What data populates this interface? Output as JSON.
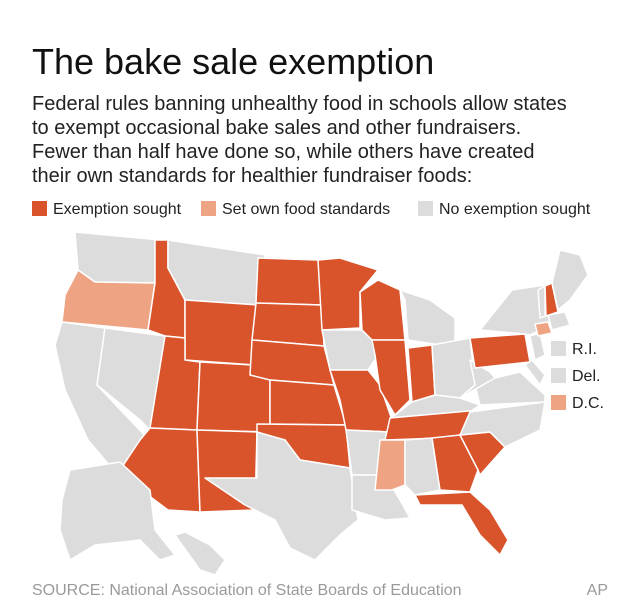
{
  "header": {
    "title": "The bake sale exemption",
    "description": [
      "Federal rules banning unhealthy food in schools allow states",
      "to exempt occasional bake sales and other fundraisers.",
      "Fewer than half have done so, while others have created",
      "their own standards for healthier fundraiser foods:"
    ]
  },
  "legend": [
    {
      "label": "Exemption sought",
      "color": "#d9532b"
    },
    {
      "label": "Set own food standards",
      "color": "#eea383"
    },
    {
      "label": "No exemption sought",
      "color": "#dcdcdc"
    }
  ],
  "small_states": [
    {
      "label": "R.I.",
      "color": "#dcdcdc"
    },
    {
      "label": "Del.",
      "color": "#dcdcdc"
    },
    {
      "label": "D.C.",
      "color": "#eea383"
    }
  ],
  "footer": {
    "source": "SOURCE: National Association of State Boards of Education",
    "credit": "AP"
  }
}
